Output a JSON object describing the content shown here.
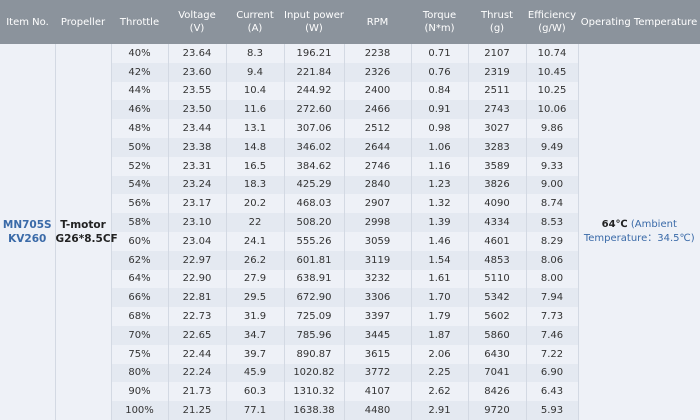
{
  "headers": {
    "item": "Item No.",
    "propeller": "Propeller",
    "throttle": "Throttle",
    "voltage": "Voltage",
    "voltage_unit": "(V)",
    "current": "Current",
    "current_unit": "(A)",
    "power": "Input power",
    "power_unit": "(W)",
    "rpm": "RPM",
    "torque": "Torque",
    "torque_unit": "(N*m)",
    "thrust": "Thrust",
    "thrust_unit": "(g)",
    "efficiency": "Efficiency",
    "efficiency_unit": "(g/W)",
    "temp": "Operating Temperature"
  },
  "item": {
    "line1": "MN705S",
    "line2": "KV260"
  },
  "propeller": {
    "line1": "T-motor",
    "line2": "G26*8.5CF"
  },
  "temperature": {
    "value": "64℃",
    "note1": "(Ambient",
    "note2": "Temperature：34.5℃)"
  },
  "rows": [
    [
      "40%",
      "23.64",
      "8.3",
      "196.21",
      "2238",
      "0.71",
      "2107",
      "10.74"
    ],
    [
      "42%",
      "23.60",
      "9.4",
      "221.84",
      "2326",
      "0.76",
      "2319",
      "10.45"
    ],
    [
      "44%",
      "23.55",
      "10.4",
      "244.92",
      "2400",
      "0.84",
      "2511",
      "10.25"
    ],
    [
      "46%",
      "23.50",
      "11.6",
      "272.60",
      "2466",
      "0.91",
      "2743",
      "10.06"
    ],
    [
      "48%",
      "23.44",
      "13.1",
      "307.06",
      "2512",
      "0.98",
      "3027",
      "9.86"
    ],
    [
      "50%",
      "23.38",
      "14.8",
      "346.02",
      "2644",
      "1.06",
      "3283",
      "9.49"
    ],
    [
      "52%",
      "23.31",
      "16.5",
      "384.62",
      "2746",
      "1.16",
      "3589",
      "9.33"
    ],
    [
      "54%",
      "23.24",
      "18.3",
      "425.29",
      "2840",
      "1.23",
      "3826",
      "9.00"
    ],
    [
      "56%",
      "23.17",
      "20.2",
      "468.03",
      "2907",
      "1.32",
      "4090",
      "8.74"
    ],
    [
      "58%",
      "23.10",
      "22",
      "508.20",
      "2998",
      "1.39",
      "4334",
      "8.53"
    ],
    [
      "60%",
      "23.04",
      "24.1",
      "555.26",
      "3059",
      "1.46",
      "4601",
      "8.29"
    ],
    [
      "62%",
      "22.97",
      "26.2",
      "601.81",
      "3119",
      "1.54",
      "4853",
      "8.06"
    ],
    [
      "64%",
      "22.90",
      "27.9",
      "638.91",
      "3232",
      "1.61",
      "5110",
      "8.00"
    ],
    [
      "66%",
      "22.81",
      "29.5",
      "672.90",
      "3306",
      "1.70",
      "5342",
      "7.94"
    ],
    [
      "68%",
      "22.73",
      "31.9",
      "725.09",
      "3397",
      "1.79",
      "5602",
      "7.73"
    ],
    [
      "70%",
      "22.65",
      "34.7",
      "785.96",
      "3445",
      "1.87",
      "5860",
      "7.46"
    ],
    [
      "75%",
      "22.44",
      "39.7",
      "890.87",
      "3615",
      "2.06",
      "6430",
      "7.22"
    ],
    [
      "80%",
      "22.24",
      "45.9",
      "1020.82",
      "3772",
      "2.25",
      "7041",
      "6.90"
    ],
    [
      "90%",
      "21.73",
      "60.3",
      "1310.32",
      "4107",
      "2.62",
      "8426",
      "6.43"
    ],
    [
      "100%",
      "21.25",
      "77.1",
      "1638.38",
      "4480",
      "2.91",
      "9720",
      "5.93"
    ]
  ]
}
